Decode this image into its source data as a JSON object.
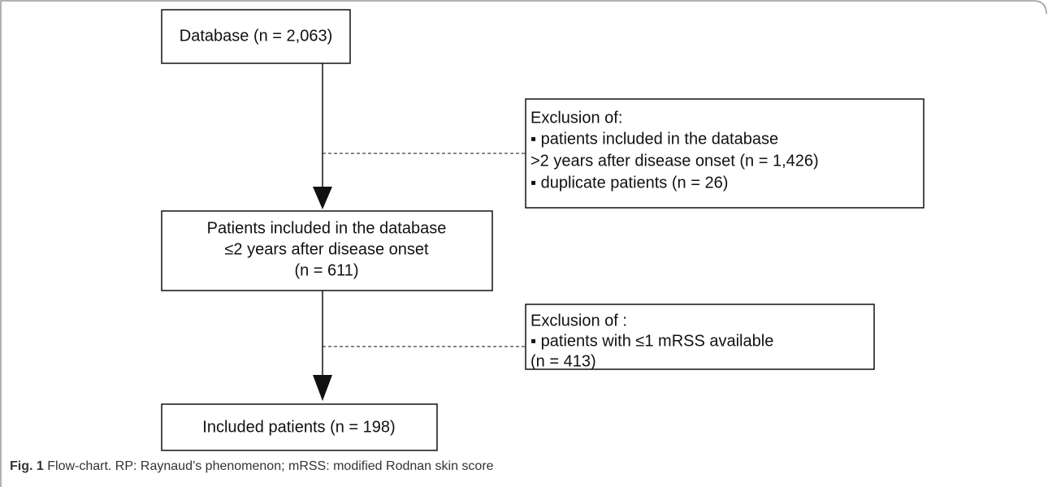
{
  "nodes": [
    {
      "lines": [
        "Database (n = 2,063)"
      ]
    },
    {
      "lines": [
        "Patients included in the database",
        "≤2 years after disease onset",
        "(n = 611)"
      ]
    },
    {
      "lines": [
        "Included patients (n = 198)"
      ]
    }
  ],
  "exclusions": [
    {
      "lines": [
        "Exclusion of:",
        "▪ patients included in the database",
        ">2 years after disease onset (n = 1,426)",
        "▪ duplicate patients (n = 26)"
      ]
    },
    {
      "lines": [
        "Exclusion of :",
        "▪ patients with ≤1 mRSS available",
        "(n = 413)"
      ]
    }
  ],
  "caption": {
    "label": "Fig. 1",
    "text": "Flow-chart. RP: Raynaud’s phenomenon; mRSS: modified Rodnan skin score"
  }
}
